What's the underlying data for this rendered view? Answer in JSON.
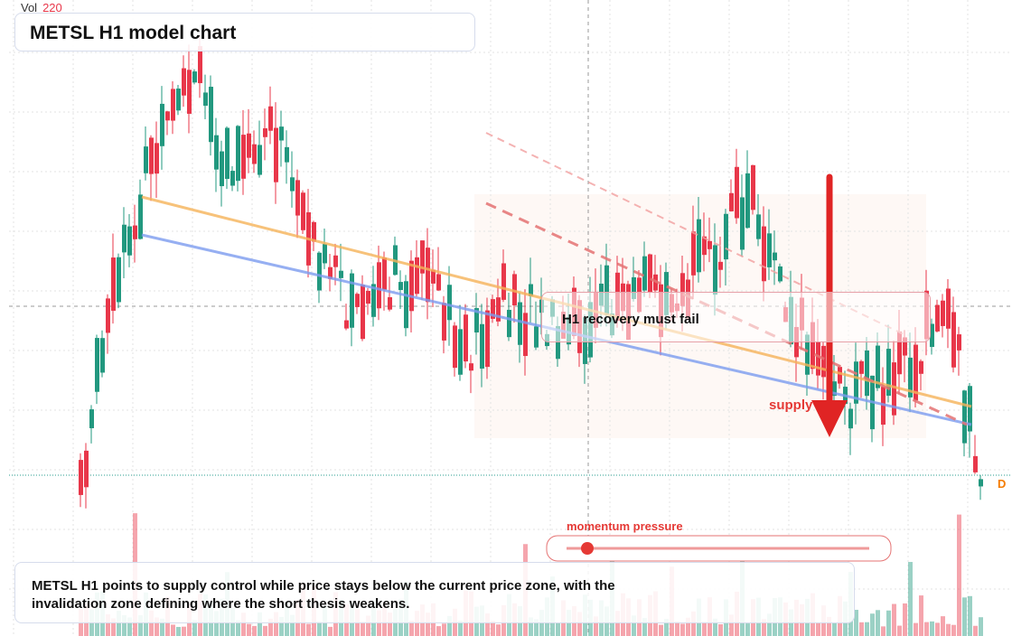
{
  "header": {
    "vol_label": "Vol",
    "vol_value": "220",
    "title": "METSL H1 model chart"
  },
  "annotations": {
    "thesis_box": "H1 recovery must fail",
    "supply_label": "supply",
    "slider_label": "momentum pressure",
    "price_tag": "D"
  },
  "description": "METSL H1 points to supply control while price stays below the current price zone, with the invalidation zone defining where the short thesis weakens."
}
